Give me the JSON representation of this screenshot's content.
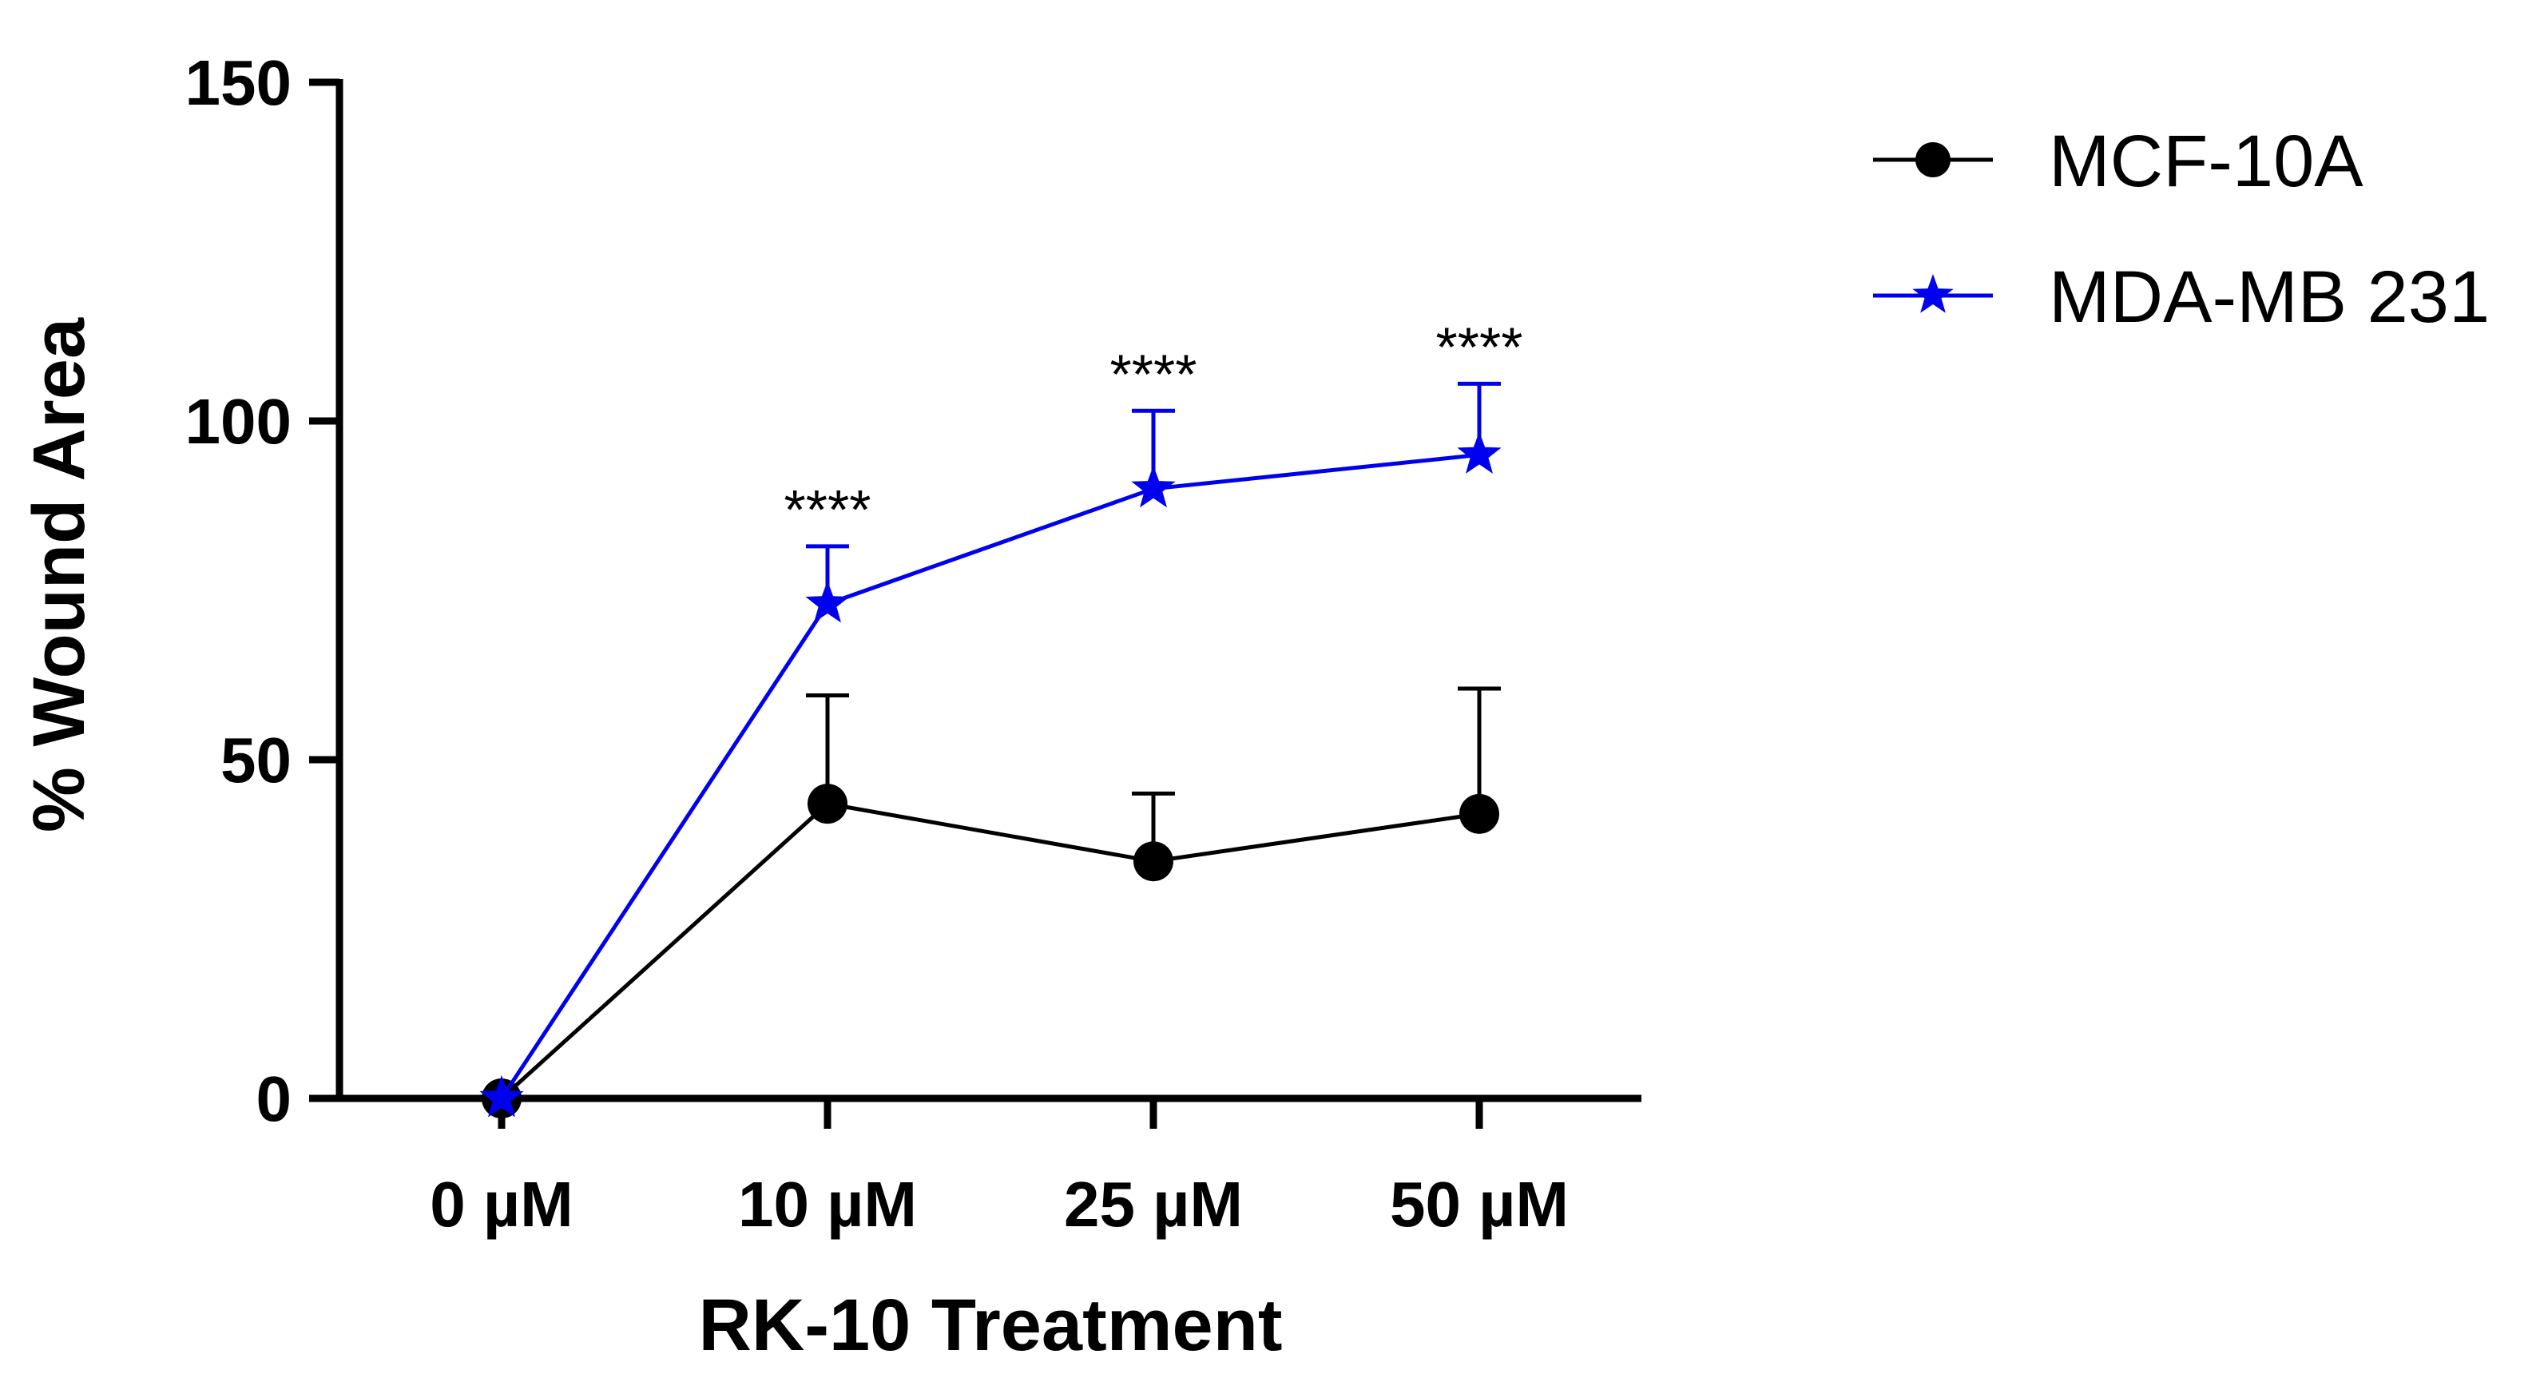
{
  "chart_data": {
    "type": "line",
    "title": "",
    "xlabel": "RK-10 Treatment",
    "ylabel": "% Wound Area",
    "categories": [
      "0 µM",
      "10 µM",
      "25 µM",
      "50 µM"
    ],
    "ylim": [
      0,
      150
    ],
    "yticks": [
      0,
      50,
      100,
      150
    ],
    "grid": false,
    "legend_position": "top-right",
    "series": [
      {
        "name": "MCF-10A",
        "color": "#000000",
        "marker": "circle",
        "values": [
          0,
          43.5,
          35,
          42
        ],
        "errors_upper": [
          0,
          16,
          10,
          18.5
        ]
      },
      {
        "name": "MDA-MB 231",
        "color": "#0000ee",
        "marker": "star",
        "values": [
          0,
          73,
          90,
          95
        ],
        "errors_upper": [
          0,
          8.5,
          11.5,
          10.5
        ]
      }
    ],
    "annotations": [
      {
        "category": "10 µM",
        "text": "****"
      },
      {
        "category": "25 µM",
        "text": "****"
      },
      {
        "category": "50 µM",
        "text": "****"
      }
    ]
  }
}
